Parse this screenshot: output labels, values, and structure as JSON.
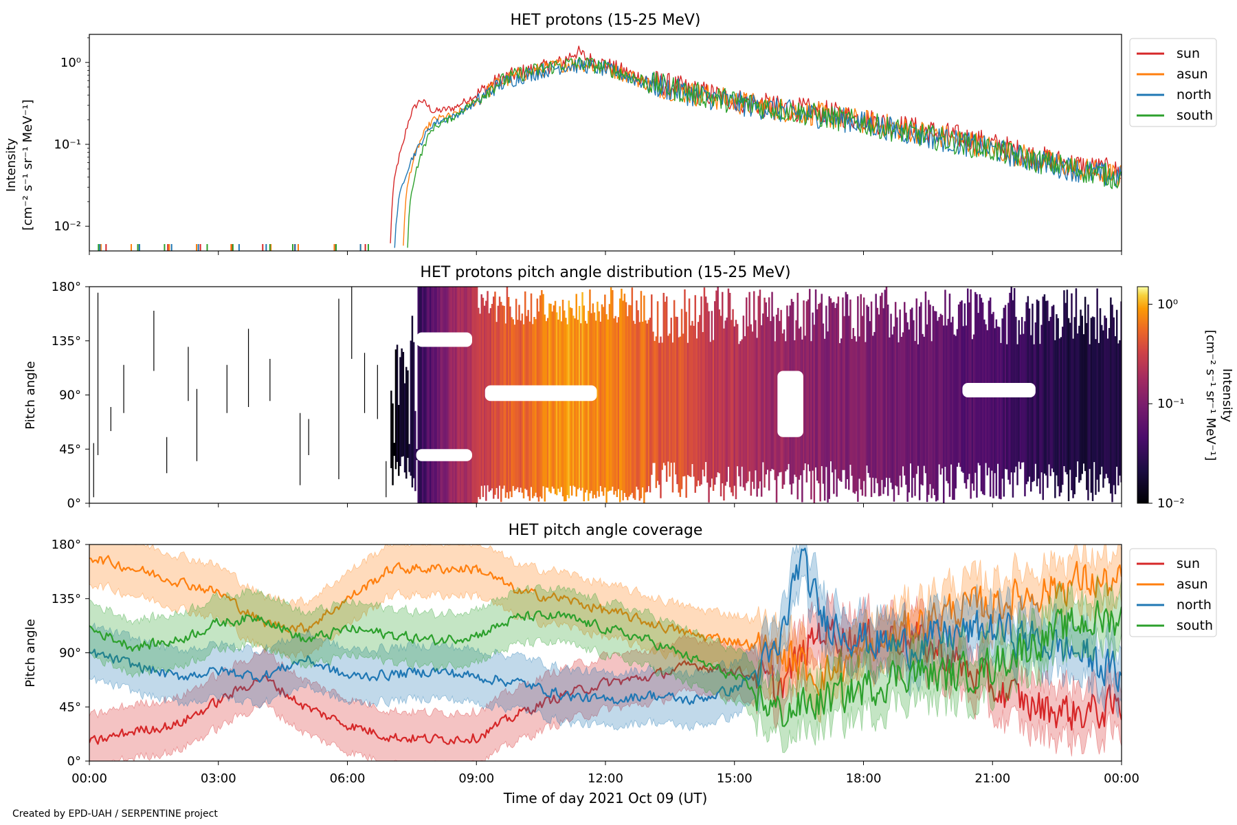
{
  "figure": {
    "credit": "Created by EPD-UAH / SERPENTINE project",
    "xlabel": "Time of day 2021 Oct 09 (UT)",
    "xtick_labels": [
      "00:00",
      "03:00",
      "06:00",
      "09:00",
      "12:00",
      "15:00",
      "18:00",
      "21:00",
      "00:00"
    ]
  },
  "colors": {
    "sun": "#d62728",
    "asun": "#ff7f0e",
    "north": "#1f77b4",
    "south": "#2ca02c"
  },
  "chart_data": [
    {
      "type": "line",
      "title": "HET protons (15-25 MeV)",
      "ylabel_line1": "Intensity",
      "ylabel_line2": "[cm⁻² s⁻¹ sr⁻¹ MeV⁻¹]",
      "yscale": "log",
      "ylim": [
        0.005,
        2.2
      ],
      "yticks": [
        {
          "v": 0.01,
          "label": "10⁻²"
        },
        {
          "v": 0.1,
          "label": "10⁻¹"
        },
        {
          "v": 1,
          "label": "10⁰"
        }
      ],
      "xlim_hours": [
        0,
        24
      ],
      "legend": [
        "sun",
        "asun",
        "north",
        "south"
      ],
      "legend_position": "outside-right-top",
      "series": [
        {
          "name": "sun",
          "hours": [
            7.0,
            7.3,
            7.5,
            7.7,
            8.0,
            8.5,
            9.0,
            9.5,
            10.0,
            10.5,
            11.0,
            11.3,
            11.6,
            12.0,
            12.5,
            13.0,
            14.0,
            15.0,
            16.0,
            17.0,
            18.0,
            19.0,
            20.0,
            21.0,
            22.0,
            23.0,
            24.0
          ],
          "values": [
            0.006,
            0.1,
            0.25,
            0.35,
            0.25,
            0.28,
            0.4,
            0.6,
            0.75,
            0.85,
            1.0,
            1.35,
            1.1,
            0.95,
            0.75,
            0.6,
            0.45,
            0.35,
            0.28,
            0.25,
            0.2,
            0.16,
            0.13,
            0.1,
            0.07,
            0.055,
            0.045
          ]
        },
        {
          "name": "asun",
          "hours": [
            7.3,
            7.6,
            8.0,
            8.5,
            9.0,
            9.5,
            10.0,
            10.5,
            11.0,
            11.5,
            12.0,
            12.5,
            13.0,
            14.0,
            15.0,
            16.0,
            17.0,
            18.0,
            19.0,
            20.0,
            21.0,
            22.0,
            23.0,
            24.0
          ],
          "values": [
            0.006,
            0.08,
            0.2,
            0.23,
            0.33,
            0.55,
            0.7,
            0.8,
            0.95,
            0.95,
            0.85,
            0.7,
            0.55,
            0.42,
            0.33,
            0.27,
            0.23,
            0.19,
            0.15,
            0.12,
            0.09,
            0.065,
            0.05,
            0.04
          ]
        },
        {
          "name": "north",
          "hours": [
            7.1,
            7.4,
            7.7,
            8.0,
            8.5,
            9.0,
            9.5,
            10.0,
            10.5,
            11.0,
            11.5,
            12.0,
            12.5,
            13.0,
            14.0,
            15.0,
            16.0,
            17.0,
            18.0,
            19.0,
            20.0,
            21.0,
            22.0,
            23.0,
            24.0
          ],
          "values": [
            0.006,
            0.05,
            0.1,
            0.18,
            0.22,
            0.32,
            0.52,
            0.66,
            0.78,
            0.9,
            0.92,
            0.82,
            0.68,
            0.54,
            0.41,
            0.32,
            0.26,
            0.22,
            0.18,
            0.14,
            0.11,
            0.085,
            0.062,
            0.048,
            0.038
          ]
        },
        {
          "name": "south",
          "hours": [
            7.4,
            7.7,
            8.0,
            8.5,
            9.0,
            9.5,
            10.0,
            10.5,
            11.0,
            11.5,
            12.0,
            12.5,
            13.0,
            14.0,
            15.0,
            16.0,
            17.0,
            18.0,
            19.0,
            20.0,
            21.0,
            22.0,
            23.0,
            24.0
          ],
          "values": [
            0.006,
            0.07,
            0.16,
            0.22,
            0.34,
            0.56,
            0.72,
            0.82,
            0.95,
            0.97,
            0.86,
            0.7,
            0.56,
            0.42,
            0.33,
            0.27,
            0.22,
            0.18,
            0.14,
            0.11,
            0.085,
            0.063,
            0.049,
            0.038
          ]
        }
      ]
    },
    {
      "type": "heatmap",
      "title": "HET protons pitch angle distribution (15-25 MeV)",
      "ylabel": "Pitch angle",
      "ylim": [
        0,
        180
      ],
      "yticks": [
        "0°",
        "45°",
        "90°",
        "135°",
        "180°"
      ],
      "xlim_hours": [
        0,
        24
      ],
      "colormap": "inferno",
      "cscale": "log",
      "clim": [
        0.01,
        1.5
      ],
      "colorbar_ticks": [
        "10⁻²",
        "10⁻¹",
        "10⁰"
      ],
      "colorbar_label_line1": "Intensity",
      "colorbar_label_line2": "[cm⁻² s⁻¹ sr⁻¹ MeV⁻¹]",
      "sparse_lines_before_onset": [
        {
          "hour": 0.1,
          "from": 5,
          "to": 50
        },
        {
          "hour": 0.2,
          "from": 40,
          "to": 175
        },
        {
          "hour": 0.5,
          "from": 60,
          "to": 80
        },
        {
          "hour": 0.8,
          "from": 75,
          "to": 115
        },
        {
          "hour": 1.5,
          "from": 110,
          "to": 160
        },
        {
          "hour": 1.8,
          "from": 25,
          "to": 55
        },
        {
          "hour": 2.3,
          "from": 85,
          "to": 130
        },
        {
          "hour": 2.5,
          "from": 35,
          "to": 95
        },
        {
          "hour": 3.2,
          "from": 75,
          "to": 115
        },
        {
          "hour": 3.7,
          "from": 80,
          "to": 145
        },
        {
          "hour": 4.2,
          "from": 85,
          "to": 120
        },
        {
          "hour": 4.9,
          "from": 15,
          "to": 75
        },
        {
          "hour": 5.1,
          "from": 40,
          "to": 70
        },
        {
          "hour": 5.8,
          "from": 20,
          "to": 170
        },
        {
          "hour": 6.1,
          "from": 120,
          "to": 180
        },
        {
          "hour": 6.4,
          "from": 75,
          "to": 125
        },
        {
          "hour": 6.7,
          "from": 70,
          "to": 115
        },
        {
          "hour": 6.9,
          "from": 5,
          "to": 35
        }
      ],
      "sparse_line_color": "#000000",
      "gap_bands": [
        {
          "from_hour": 7.6,
          "to_hour": 8.9,
          "lo": 35,
          "hi": 45
        },
        {
          "from_hour": 7.6,
          "to_hour": 8.9,
          "lo": 130,
          "hi": 142
        },
        {
          "from_hour": 9.2,
          "to_hour": 11.8,
          "lo": 85,
          "hi": 98
        },
        {
          "from_hour": 16.0,
          "to_hour": 16.6,
          "lo": 55,
          "hi": 110
        },
        {
          "from_hour": 20.3,
          "to_hour": 22.0,
          "lo": 88,
          "hi": 100
        }
      ],
      "profile_hours": [
        7.0,
        7.5,
        8.0,
        9.0,
        10.0,
        11.0,
        12.0,
        13.0,
        14.0,
        15.0,
        16.0,
        17.0,
        18.0,
        19.0,
        20.0,
        21.0,
        22.0,
        23.0,
        24.0
      ],
      "profile_values": [
        0.01,
        0.02,
        0.06,
        0.25,
        0.5,
        0.9,
        0.7,
        0.5,
        0.35,
        0.22,
        0.15,
        0.12,
        0.1,
        0.08,
        0.06,
        0.045,
        0.03,
        0.02,
        0.025
      ]
    },
    {
      "type": "line",
      "title": "HET pitch angle coverage",
      "ylabel": "Pitch angle",
      "ylim": [
        0,
        180
      ],
      "yticks": [
        "0°",
        "45°",
        "90°",
        "135°",
        "180°"
      ],
      "xlim_hours": [
        0,
        24
      ],
      "legend": [
        "sun",
        "asun",
        "north",
        "south"
      ],
      "legend_position": "outside-right-top",
      "shaded_band_halfwidth_deg": 22,
      "series": [
        {
          "name": "sun",
          "hours": [
            0,
            1,
            2,
            3,
            4,
            5,
            6,
            7,
            8,
            9,
            10,
            11,
            12,
            13,
            14,
            15,
            15.5,
            16,
            17,
            18,
            19,
            20,
            21,
            22,
            23,
            24
          ],
          "values": [
            15,
            25,
            30,
            50,
            70,
            45,
            30,
            20,
            18,
            20,
            40,
            55,
            65,
            70,
            80,
            75,
            70,
            60,
            110,
            100,
            105,
            85,
            60,
            45,
            40,
            45
          ]
        },
        {
          "name": "asun",
          "hours": [
            0,
            1,
            2,
            3,
            4,
            5,
            6,
            7,
            8,
            9,
            10,
            11,
            12,
            13,
            14,
            15,
            16,
            17,
            18,
            19,
            20,
            21,
            22,
            23,
            24
          ],
          "values": [
            170,
            160,
            150,
            140,
            115,
            110,
            135,
            160,
            160,
            160,
            140,
            135,
            125,
            115,
            105,
            100,
            90,
            70,
            90,
            110,
            125,
            130,
            140,
            150,
            145
          ]
        },
        {
          "name": "north",
          "hours": [
            0,
            1,
            2,
            3,
            4,
            5,
            6,
            7,
            8,
            9,
            10,
            11,
            12,
            13,
            14,
            15,
            16,
            16.5,
            17,
            18,
            19,
            20,
            21,
            22,
            23,
            24
          ],
          "values": [
            90,
            80,
            70,
            75,
            70,
            85,
            70,
            72,
            75,
            70,
            65,
            55,
            50,
            55,
            50,
            60,
            90,
            170,
            120,
            100,
            95,
            105,
            110,
            100,
            90,
            70
          ]
        },
        {
          "name": "south",
          "hours": [
            0,
            1,
            2,
            3,
            4,
            5,
            6,
            7,
            8,
            9,
            10,
            11,
            12,
            13,
            14,
            15,
            16,
            17,
            18,
            19,
            20,
            21,
            22,
            23,
            24
          ],
          "values": [
            110,
            95,
            100,
            115,
            120,
            100,
            110,
            105,
            100,
            105,
            120,
            120,
            110,
            100,
            85,
            70,
            40,
            50,
            60,
            75,
            70,
            80,
            100,
            115,
            120
          ]
        }
      ]
    }
  ]
}
